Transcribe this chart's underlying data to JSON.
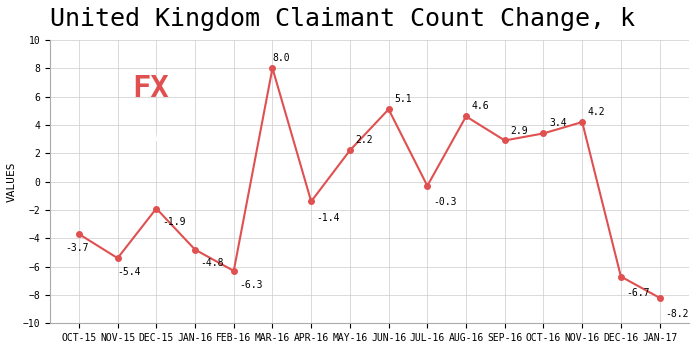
{
  "title": "United Kingdom Claimant Count Change, k",
  "ylabel": "VALUES",
  "categories": [
    "OCT-15",
    "NOV-15",
    "DEC-15",
    "JAN-16",
    "FEB-16",
    "MAR-16",
    "APR-16",
    "MAY-16",
    "JUN-16",
    "JUL-16",
    "AUG-16",
    "SEP-16",
    "OCT-16",
    "NOV-16",
    "DEC-16",
    "JAN-17"
  ],
  "values": [
    -3.7,
    -5.4,
    -1.9,
    -4.8,
    -6.3,
    8.0,
    -1.4,
    2.2,
    5.1,
    -0.3,
    4.6,
    2.9,
    3.4,
    4.2,
    -6.7,
    -8.2
  ],
  "line_color": "#e05050",
  "marker": "o",
  "marker_size": 4,
  "ylim": [
    -10,
    10
  ],
  "yticks": [
    -10,
    -8,
    -6,
    -4,
    -2,
    0,
    2,
    4,
    6,
    8,
    10
  ],
  "grid_color": "#cccccc",
  "bg_color": "#ffffff",
  "title_fontsize": 18,
  "label_fontsize": 7,
  "annotation_fontsize": 7,
  "logo_bg": "#666666",
  "logo_fx_color": "#e05050",
  "logo_team_color": "#ffffff"
}
